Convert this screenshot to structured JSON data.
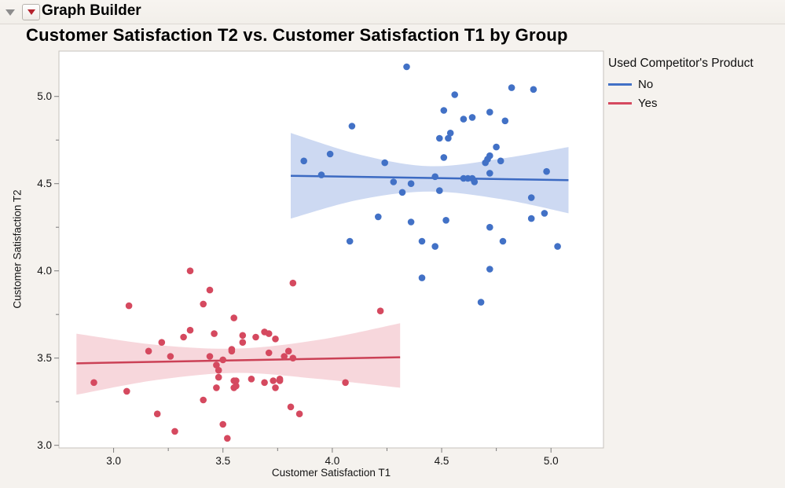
{
  "header": {
    "outline_title": "Graph Builder"
  },
  "chart_data": {
    "type": "scatter",
    "title": "Customer Satisfaction T2 vs. Customer Satisfaction T1 by Group",
    "xlabel": "Customer Satisfaction T1",
    "ylabel": "Customer Satisfaction T2",
    "xlim": [
      2.75,
      5.24
    ],
    "ylim": [
      2.985,
      5.26
    ],
    "x_ticks": [
      3.0,
      3.5,
      4.0,
      4.5,
      5.0
    ],
    "y_ticks": [
      3.0,
      3.5,
      4.0,
      4.5,
      5.0
    ],
    "minor_tick_step": 0.25,
    "grid": false,
    "legend": {
      "title": "Used Competitor's Product",
      "position": "right",
      "entries": [
        {
          "label": "No",
          "color": "#4271c6"
        },
        {
          "label": "Yes",
          "color": "#d5495f"
        }
      ]
    },
    "series": [
      {
        "name": "No",
        "point_color": "#4271c6",
        "line_color": "#3c6ac2",
        "band_color": "#cdd9f2",
        "fit_line": {
          "x": [
            3.81,
            5.08
          ],
          "y": [
            4.545,
            4.52
          ]
        },
        "band": {
          "x": [
            3.81,
            4.13,
            4.45,
            4.78,
            5.08
          ],
          "top": [
            4.79,
            4.665,
            4.6,
            4.645,
            4.71
          ],
          "bottom": [
            4.3,
            4.41,
            4.455,
            4.41,
            4.33
          ]
        },
        "points": [
          [
            4.34,
            5.17
          ],
          [
            4.82,
            5.05
          ],
          [
            4.92,
            5.04
          ],
          [
            4.56,
            5.01
          ],
          [
            4.51,
            4.92
          ],
          [
            4.72,
            4.91
          ],
          [
            4.64,
            4.88
          ],
          [
            4.6,
            4.87
          ],
          [
            4.79,
            4.86
          ],
          [
            4.09,
            4.83
          ],
          [
            4.54,
            4.79
          ],
          [
            4.53,
            4.76
          ],
          [
            4.49,
            4.76
          ],
          [
            4.75,
            4.71
          ],
          [
            3.99,
            4.67
          ],
          [
            4.72,
            4.66
          ],
          [
            4.51,
            4.65
          ],
          [
            4.71,
            4.64
          ],
          [
            3.87,
            4.63
          ],
          [
            4.77,
            4.63
          ],
          [
            4.24,
            4.62
          ],
          [
            4.7,
            4.62
          ],
          [
            4.98,
            4.57
          ],
          [
            4.72,
            4.56
          ],
          [
            3.95,
            4.55
          ],
          [
            4.47,
            4.54
          ],
          [
            4.6,
            4.53
          ],
          [
            4.62,
            4.53
          ],
          [
            4.64,
            4.53
          ],
          [
            4.28,
            4.51
          ],
          [
            4.65,
            4.51
          ],
          [
            4.36,
            4.5
          ],
          [
            4.49,
            4.46
          ],
          [
            4.32,
            4.45
          ],
          [
            4.91,
            4.42
          ],
          [
            4.97,
            4.33
          ],
          [
            4.21,
            4.31
          ],
          [
            4.91,
            4.3
          ],
          [
            4.52,
            4.29
          ],
          [
            4.36,
            4.28
          ],
          [
            4.72,
            4.25
          ],
          [
            4.08,
            4.17
          ],
          [
            4.41,
            4.17
          ],
          [
            4.78,
            4.17
          ],
          [
            4.47,
            4.14
          ],
          [
            5.03,
            4.14
          ],
          [
            4.72,
            4.01
          ],
          [
            4.41,
            3.96
          ],
          [
            4.68,
            3.82
          ]
        ]
      },
      {
        "name": "Yes",
        "point_color": "#d5495f",
        "line_color": "#cb4156",
        "band_color": "#f7d7dc",
        "fit_line": {
          "x": [
            2.83,
            4.31
          ],
          "y": [
            3.47,
            3.505
          ]
        },
        "band": {
          "x": [
            2.83,
            3.2,
            3.57,
            3.94,
            4.31
          ],
          "top": [
            3.64,
            3.575,
            3.555,
            3.605,
            3.7
          ],
          "bottom": [
            3.29,
            3.375,
            3.415,
            3.38,
            3.33
          ]
        },
        "points": [
          [
            3.35,
            4.0
          ],
          [
            3.82,
            3.93
          ],
          [
            3.44,
            3.89
          ],
          [
            3.41,
            3.81
          ],
          [
            3.07,
            3.8
          ],
          [
            4.22,
            3.77
          ],
          [
            3.55,
            3.73
          ],
          [
            3.35,
            3.66
          ],
          [
            3.69,
            3.65
          ],
          [
            3.46,
            3.64
          ],
          [
            3.71,
            3.64
          ],
          [
            3.59,
            3.63
          ],
          [
            3.65,
            3.62
          ],
          [
            3.32,
            3.62
          ],
          [
            3.74,
            3.61
          ],
          [
            3.22,
            3.59
          ],
          [
            3.59,
            3.59
          ],
          [
            3.54,
            3.55
          ],
          [
            3.16,
            3.54
          ],
          [
            3.54,
            3.54
          ],
          [
            3.8,
            3.54
          ],
          [
            3.71,
            3.53
          ],
          [
            3.26,
            3.51
          ],
          [
            3.44,
            3.51
          ],
          [
            3.78,
            3.51
          ],
          [
            3.82,
            3.5
          ],
          [
            3.5,
            3.49
          ],
          [
            3.47,
            3.46
          ],
          [
            3.48,
            3.43
          ],
          [
            3.48,
            3.39
          ],
          [
            3.63,
            3.38
          ],
          [
            3.76,
            3.38
          ],
          [
            3.55,
            3.37
          ],
          [
            3.56,
            3.37
          ],
          [
            3.73,
            3.37
          ],
          [
            3.76,
            3.37
          ],
          [
            2.91,
            3.36
          ],
          [
            3.69,
            3.36
          ],
          [
            4.06,
            3.36
          ],
          [
            3.74,
            3.33
          ],
          [
            3.47,
            3.33
          ],
          [
            3.55,
            3.33
          ],
          [
            3.56,
            3.34
          ],
          [
            3.06,
            3.31
          ],
          [
            3.41,
            3.26
          ],
          [
            3.81,
            3.22
          ],
          [
            3.2,
            3.18
          ],
          [
            3.85,
            3.18
          ],
          [
            3.5,
            3.12
          ],
          [
            3.28,
            3.08
          ],
          [
            3.52,
            3.04
          ]
        ]
      }
    ]
  }
}
